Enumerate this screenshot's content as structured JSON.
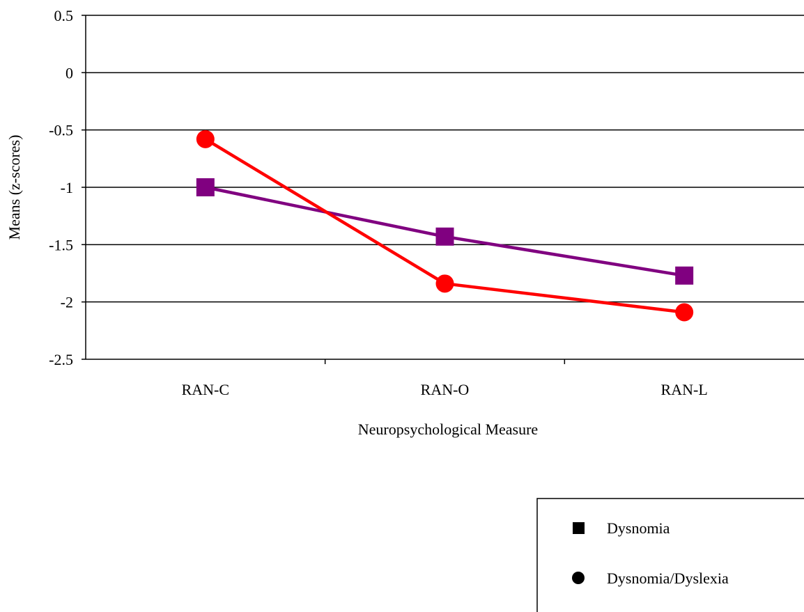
{
  "chart_data": {
    "type": "line",
    "categories": [
      "RAN-C",
      "RAN-O",
      "RAN-L"
    ],
    "series": [
      {
        "name": "Dysnomia",
        "values": [
          -1.0,
          -1.43,
          -1.77
        ],
        "color": "#800080",
        "marker": "square"
      },
      {
        "name": "Dysnomia/Dyslexia",
        "values": [
          -0.58,
          -1.84,
          -2.09
        ],
        "color": "#ff0000",
        "marker": "circle"
      }
    ],
    "xlabel": "Neuropsychological Measure",
    "ylabel": "Means (z-scores)",
    "ylim": [
      -2.5,
      0.5
    ],
    "yticks": [
      0.5,
      0,
      -0.5,
      -1,
      -1.5,
      -2,
      -2.5
    ],
    "ytick_labels": [
      "0.5",
      "0",
      "-0.5",
      "-1",
      "-1.5",
      "-2",
      "-2.5"
    ],
    "grid": true,
    "legend": {
      "position": "bottom-right",
      "entries": [
        {
          "label": "Dysnomia",
          "marker": "square",
          "color": "#000000"
        },
        {
          "label": "Dysnomia/Dyslexia",
          "marker": "circle",
          "color": "#000000"
        }
      ]
    }
  }
}
